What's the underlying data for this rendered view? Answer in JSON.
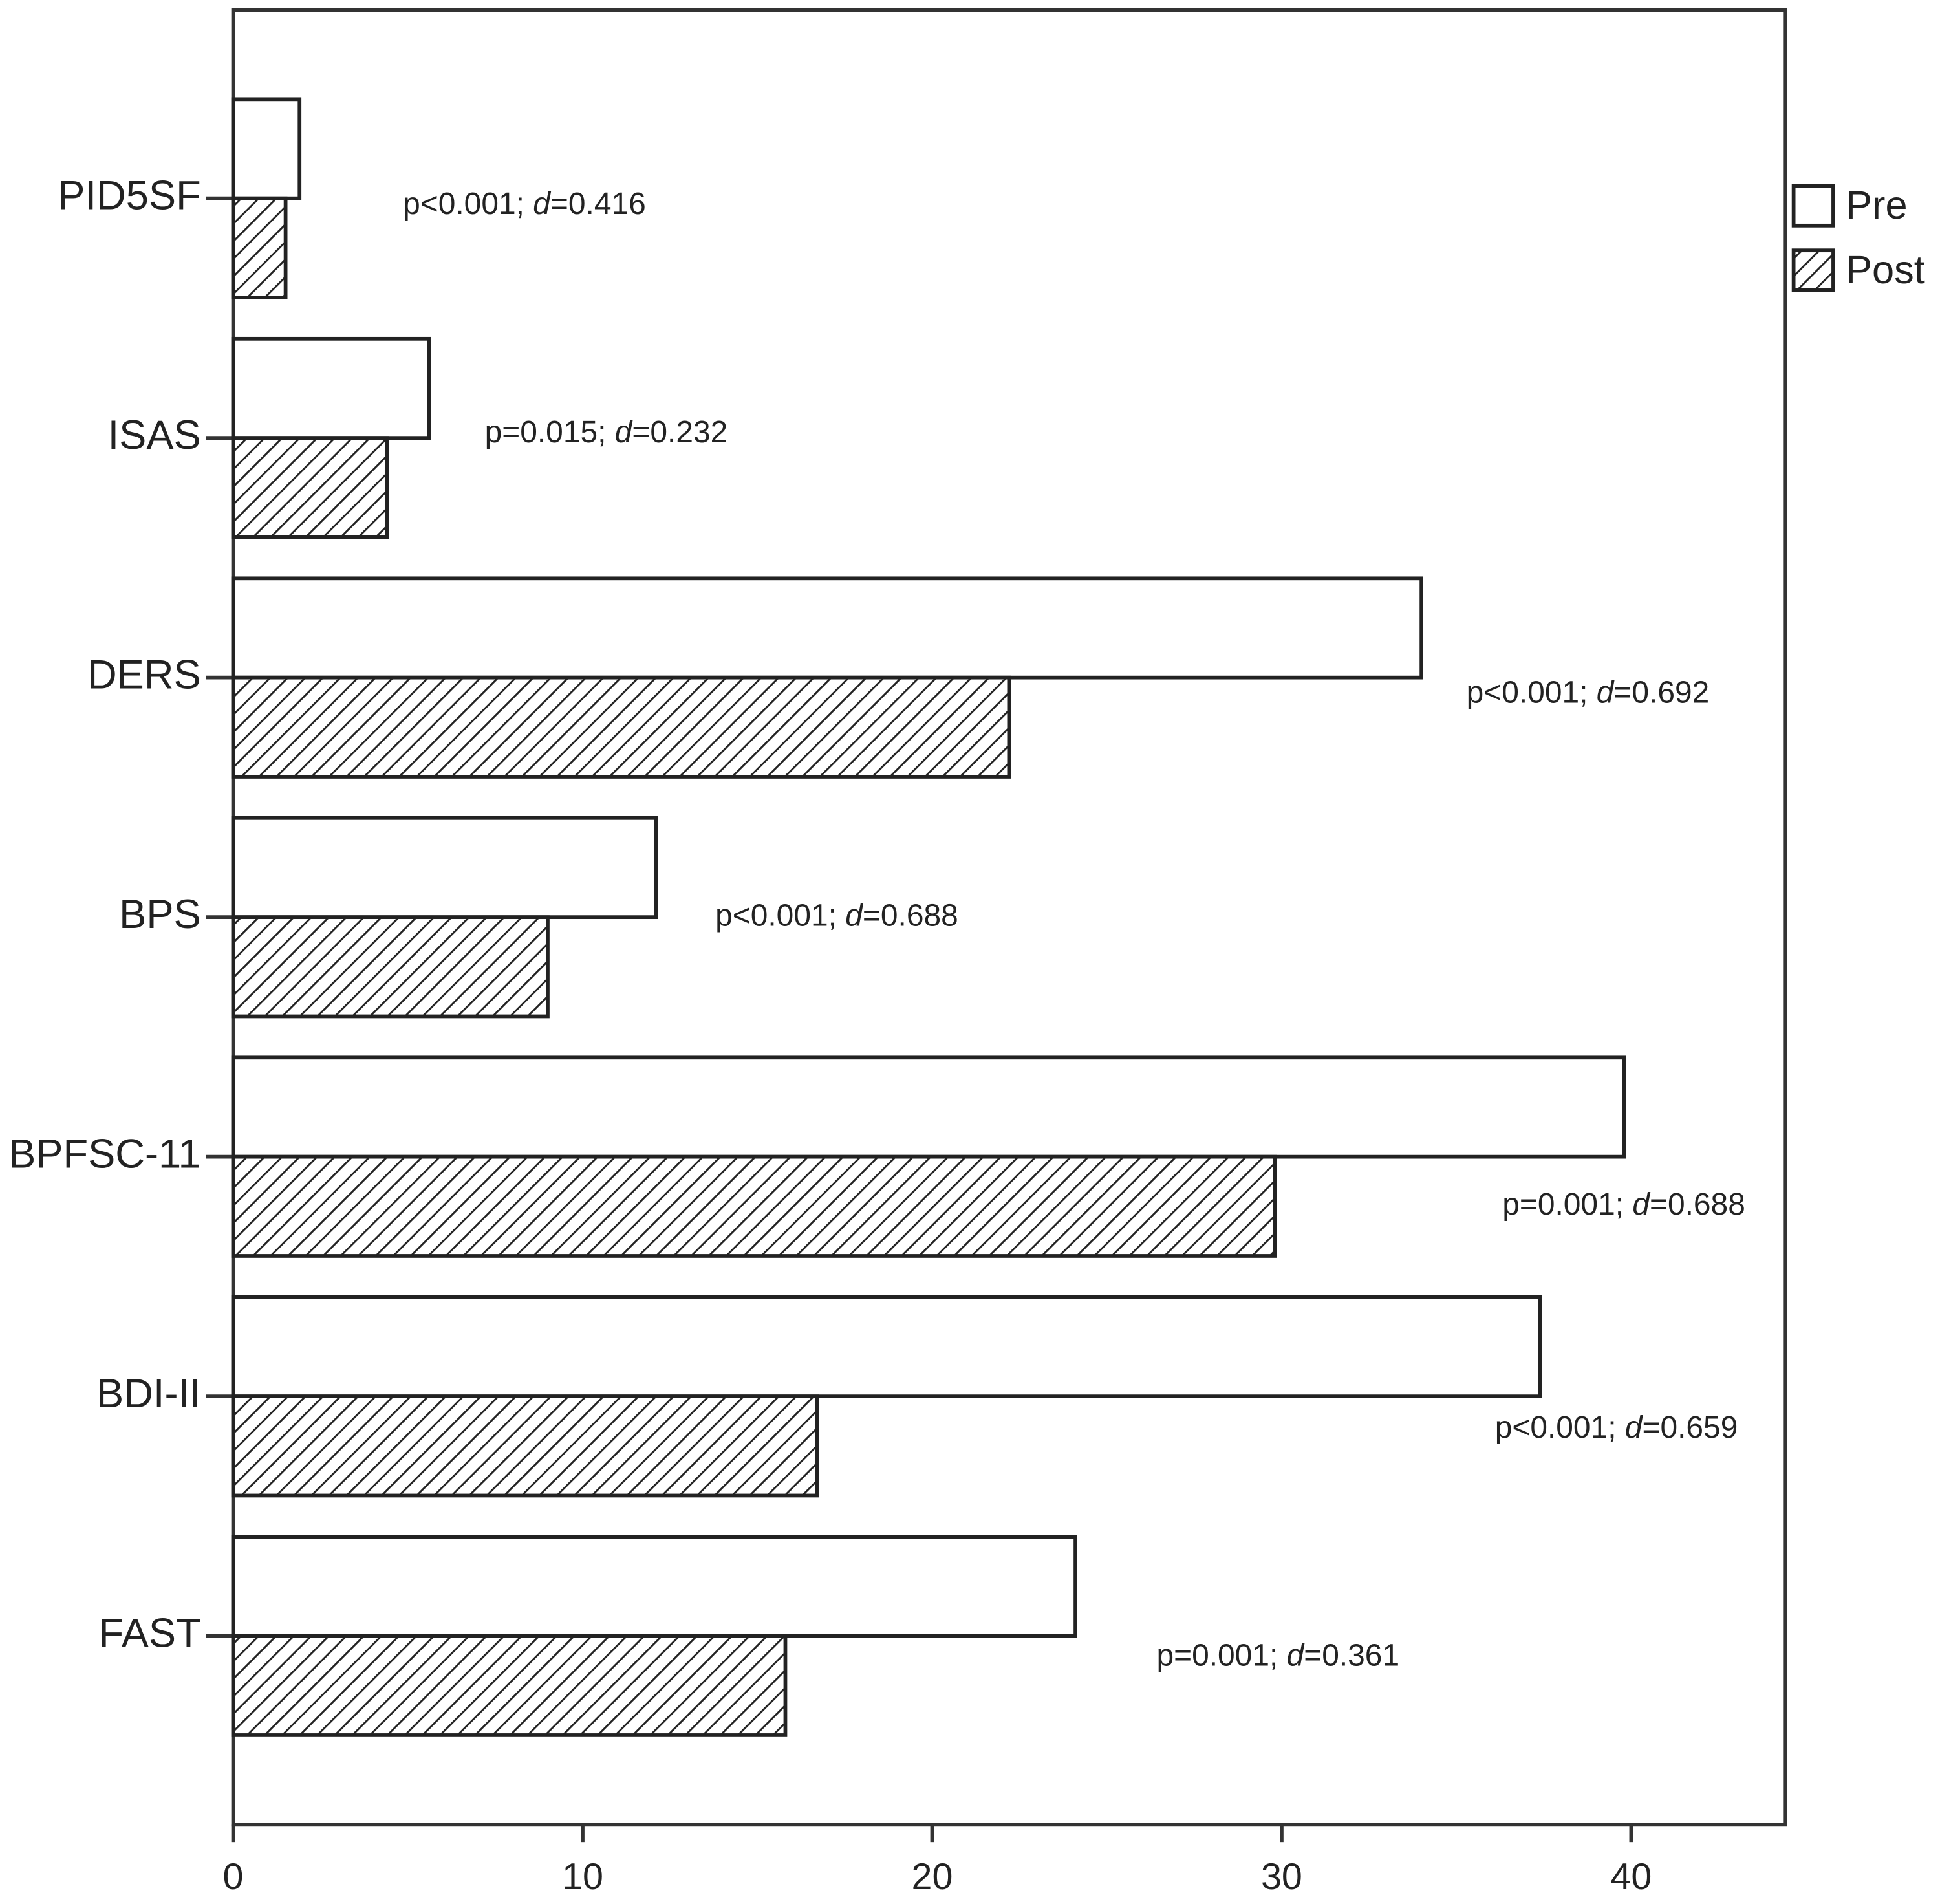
{
  "chart_data": {
    "type": "bar",
    "orientation": "horizontal",
    "categories": [
      "PID5SF",
      "ISAS",
      "DERS",
      "BPS",
      "BPFSC-11",
      "BDI-II",
      "FAST"
    ],
    "series": [
      {
        "name": "Pre",
        "color": "#ffffff",
        "hatch": false,
        "values": [
          1.9,
          5.6,
          34.0,
          12.1,
          39.8,
          37.4,
          24.1
        ]
      },
      {
        "name": "Post",
        "color": "#000000",
        "hatch": true,
        "values": [
          1.5,
          4.4,
          22.2,
          9.0,
          29.8,
          16.7,
          15.8
        ]
      }
    ],
    "annotations": [
      "p<0.001; d=0.416",
      "p=0.015; d=0.232",
      "p<0.001; d=0.692",
      "p<0.001; d=0.688",
      "p=0.001; d=0.688",
      "p<0.001; d=0.659",
      "p=0.001; d=0.361"
    ],
    "xlim": [
      0,
      44.4
    ],
    "xticks": [
      0,
      10,
      20,
      30,
      40
    ],
    "legend": "upper right"
  }
}
